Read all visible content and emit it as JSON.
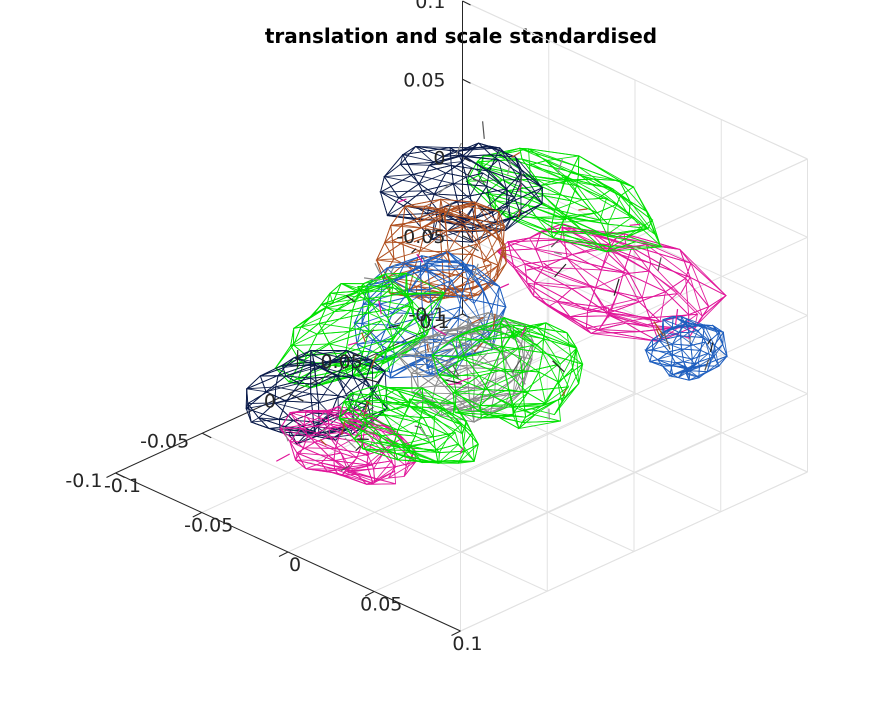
{
  "chart_data": {
    "type": "mesh3d",
    "title": "translation and scale standardised",
    "xlabel": "",
    "ylabel": "",
    "zlabel": "",
    "xlim": [
      -0.1,
      0.1
    ],
    "ylim": [
      -0.1,
      0.1
    ],
    "zlim": [
      -0.1,
      0.1
    ],
    "x_ticks": [
      "-0.1",
      "-0.05",
      "0",
      "0.05",
      "0.1"
    ],
    "y_ticks": [
      "-0.1",
      "-0.05",
      "0",
      "0.05",
      "0.1"
    ],
    "z_ticks": [
      "-0.1",
      "-0.05",
      "0",
      "0.05",
      "0.1"
    ],
    "grid": true,
    "view": "3d default (az -37.5, el 30)",
    "mesh": {
      "description_colors": [
        "#1f5fbf",
        "#00e000",
        "#e0169a",
        "#b05020",
        "#0a1a4a",
        "#8a8a8a"
      ],
      "segments": [
        {
          "color": "#e0169a",
          "center": [
            0.03,
            0.055,
            0.01
          ],
          "radius": [
            0.055,
            0.03,
            0.02
          ]
        },
        {
          "color": "#00e000",
          "center": [
            0.0,
            0.06,
            0.045
          ],
          "radius": [
            0.05,
            0.025,
            0.012
          ]
        },
        {
          "color": "#0a1a4a",
          "center": [
            -0.045,
            0.045,
            0.035
          ],
          "radius": [
            0.03,
            0.03,
            0.02
          ]
        },
        {
          "color": "#b05020",
          "center": [
            -0.04,
            0.03,
            0.005
          ],
          "radius": [
            0.025,
            0.03,
            0.025
          ]
        },
        {
          "color": "#1f5fbf",
          "center": [
            -0.02,
            0.0,
            -0.01
          ],
          "radius": [
            0.03,
            0.035,
            0.03
          ]
        },
        {
          "color": "#00e000",
          "center": [
            -0.06,
            0.0,
            -0.04
          ],
          "radius": [
            0.02,
            0.04,
            0.025
          ]
        },
        {
          "color": "#0a1a4a",
          "center": [
            -0.05,
            -0.035,
            -0.06
          ],
          "radius": [
            0.025,
            0.03,
            0.02
          ]
        },
        {
          "color": "#e0169a",
          "center": [
            -0.02,
            -0.045,
            -0.07
          ],
          "radius": [
            0.03,
            0.02,
            0.015
          ]
        },
        {
          "color": "#8a8a8a",
          "center": [
            0.005,
            0.0,
            -0.03
          ],
          "radius": [
            0.025,
            0.03,
            0.025
          ]
        },
        {
          "color": "#00e000",
          "center": [
            0.03,
            0.0,
            -0.02
          ],
          "radius": [
            0.03,
            0.03,
            0.025
          ]
        },
        {
          "color": "#1f5fbf",
          "center": [
            0.075,
            0.055,
            -0.01
          ],
          "radius": [
            0.015,
            0.015,
            0.015
          ]
        },
        {
          "color": "#00e000",
          "center": [
            0.0,
            -0.03,
            -0.055
          ],
          "radius": [
            0.035,
            0.02,
            0.015
          ]
        }
      ]
    }
  }
}
